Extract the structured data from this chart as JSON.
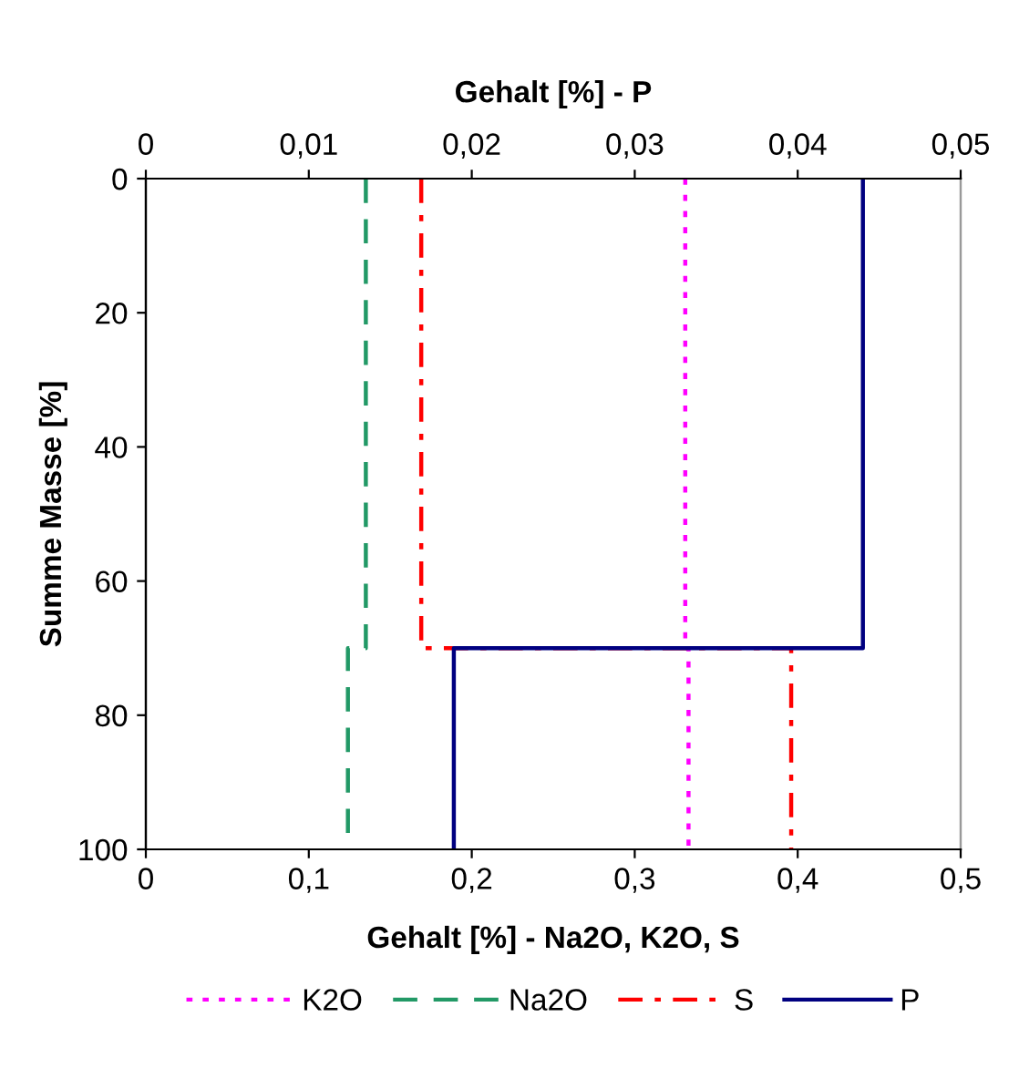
{
  "chart_data": {
    "type": "line",
    "xlabel": "Gehalt [%] - Na2O, K2O, S",
    "x2label": "Gehalt [%] - P",
    "ylabel": "Summe Masse [%]",
    "xlim": [
      0,
      0.5
    ],
    "xticks": [
      0,
      {
        "value": 0.1,
        "label": "0,1"
      },
      {
        "value": 0.2,
        "label": "0,2"
      },
      {
        "value": 0.3,
        "label": "0,3"
      },
      {
        "value": 0.4,
        "label": "0,4"
      },
      {
        "value": 0.5,
        "label": "0,5"
      }
    ],
    "x2lim": [
      0,
      0.05
    ],
    "x2ticks": [
      0,
      {
        "value": 0.01,
        "label": "0,01"
      },
      {
        "value": 0.02,
        "label": "0,02"
      },
      {
        "value": 0.03,
        "label": "0,03"
      },
      {
        "value": 0.04,
        "label": "0,04"
      },
      {
        "value": 0.05,
        "label": "0,05"
      }
    ],
    "ylim": [
      100,
      0
    ],
    "yticks": [
      0,
      20,
      40,
      60,
      80,
      100
    ],
    "grid": false,
    "legend": "bottom",
    "marker": "none",
    "series": [
      {
        "name": "K2O",
        "color": "#ff00ff",
        "line_style": "dotted",
        "x": [
          0.331,
          0.331,
          0.333,
          0.333
        ],
        "values": [
          0,
          70,
          70,
          100
        ]
      },
      {
        "name": "Na2O",
        "color": "#229966",
        "line_style": "dashed",
        "x": [
          0.135,
          0.135,
          0.124,
          0.124
        ],
        "values": [
          0,
          70,
          70,
          100
        ]
      },
      {
        "name": "S",
        "color": "#ff0000",
        "line_style": "dashdot",
        "x": [
          0.169,
          0.169,
          0.396,
          0.396
        ],
        "values": [
          0,
          70,
          70,
          100
        ]
      },
      {
        "name": "P",
        "color": "#000080",
        "line_style": "solid",
        "axis": "x2",
        "x": [
          0.044,
          0.044,
          0.0189,
          0.0189
        ],
        "values": [
          0,
          70,
          70,
          100
        ]
      }
    ]
  }
}
